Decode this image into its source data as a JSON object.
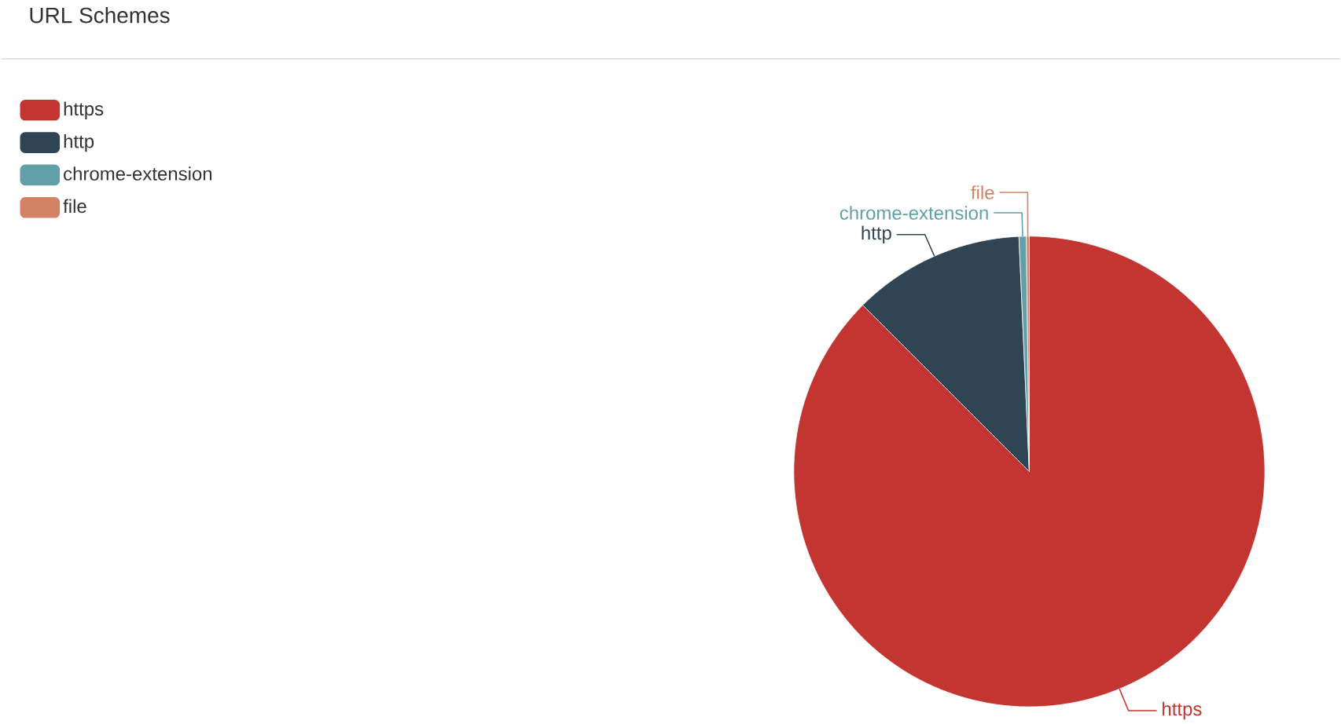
{
  "chart_data": {
    "type": "pie",
    "title": "URL Schemes",
    "categories": [
      "https",
      "http",
      "chrome-extension",
      "file"
    ],
    "values": [
      87.5,
      11.8,
      0.5,
      0.2
    ],
    "colors": [
      "#c23531",
      "#2f4554",
      "#61a0a8",
      "#d48265"
    ],
    "legend": "top left"
  }
}
